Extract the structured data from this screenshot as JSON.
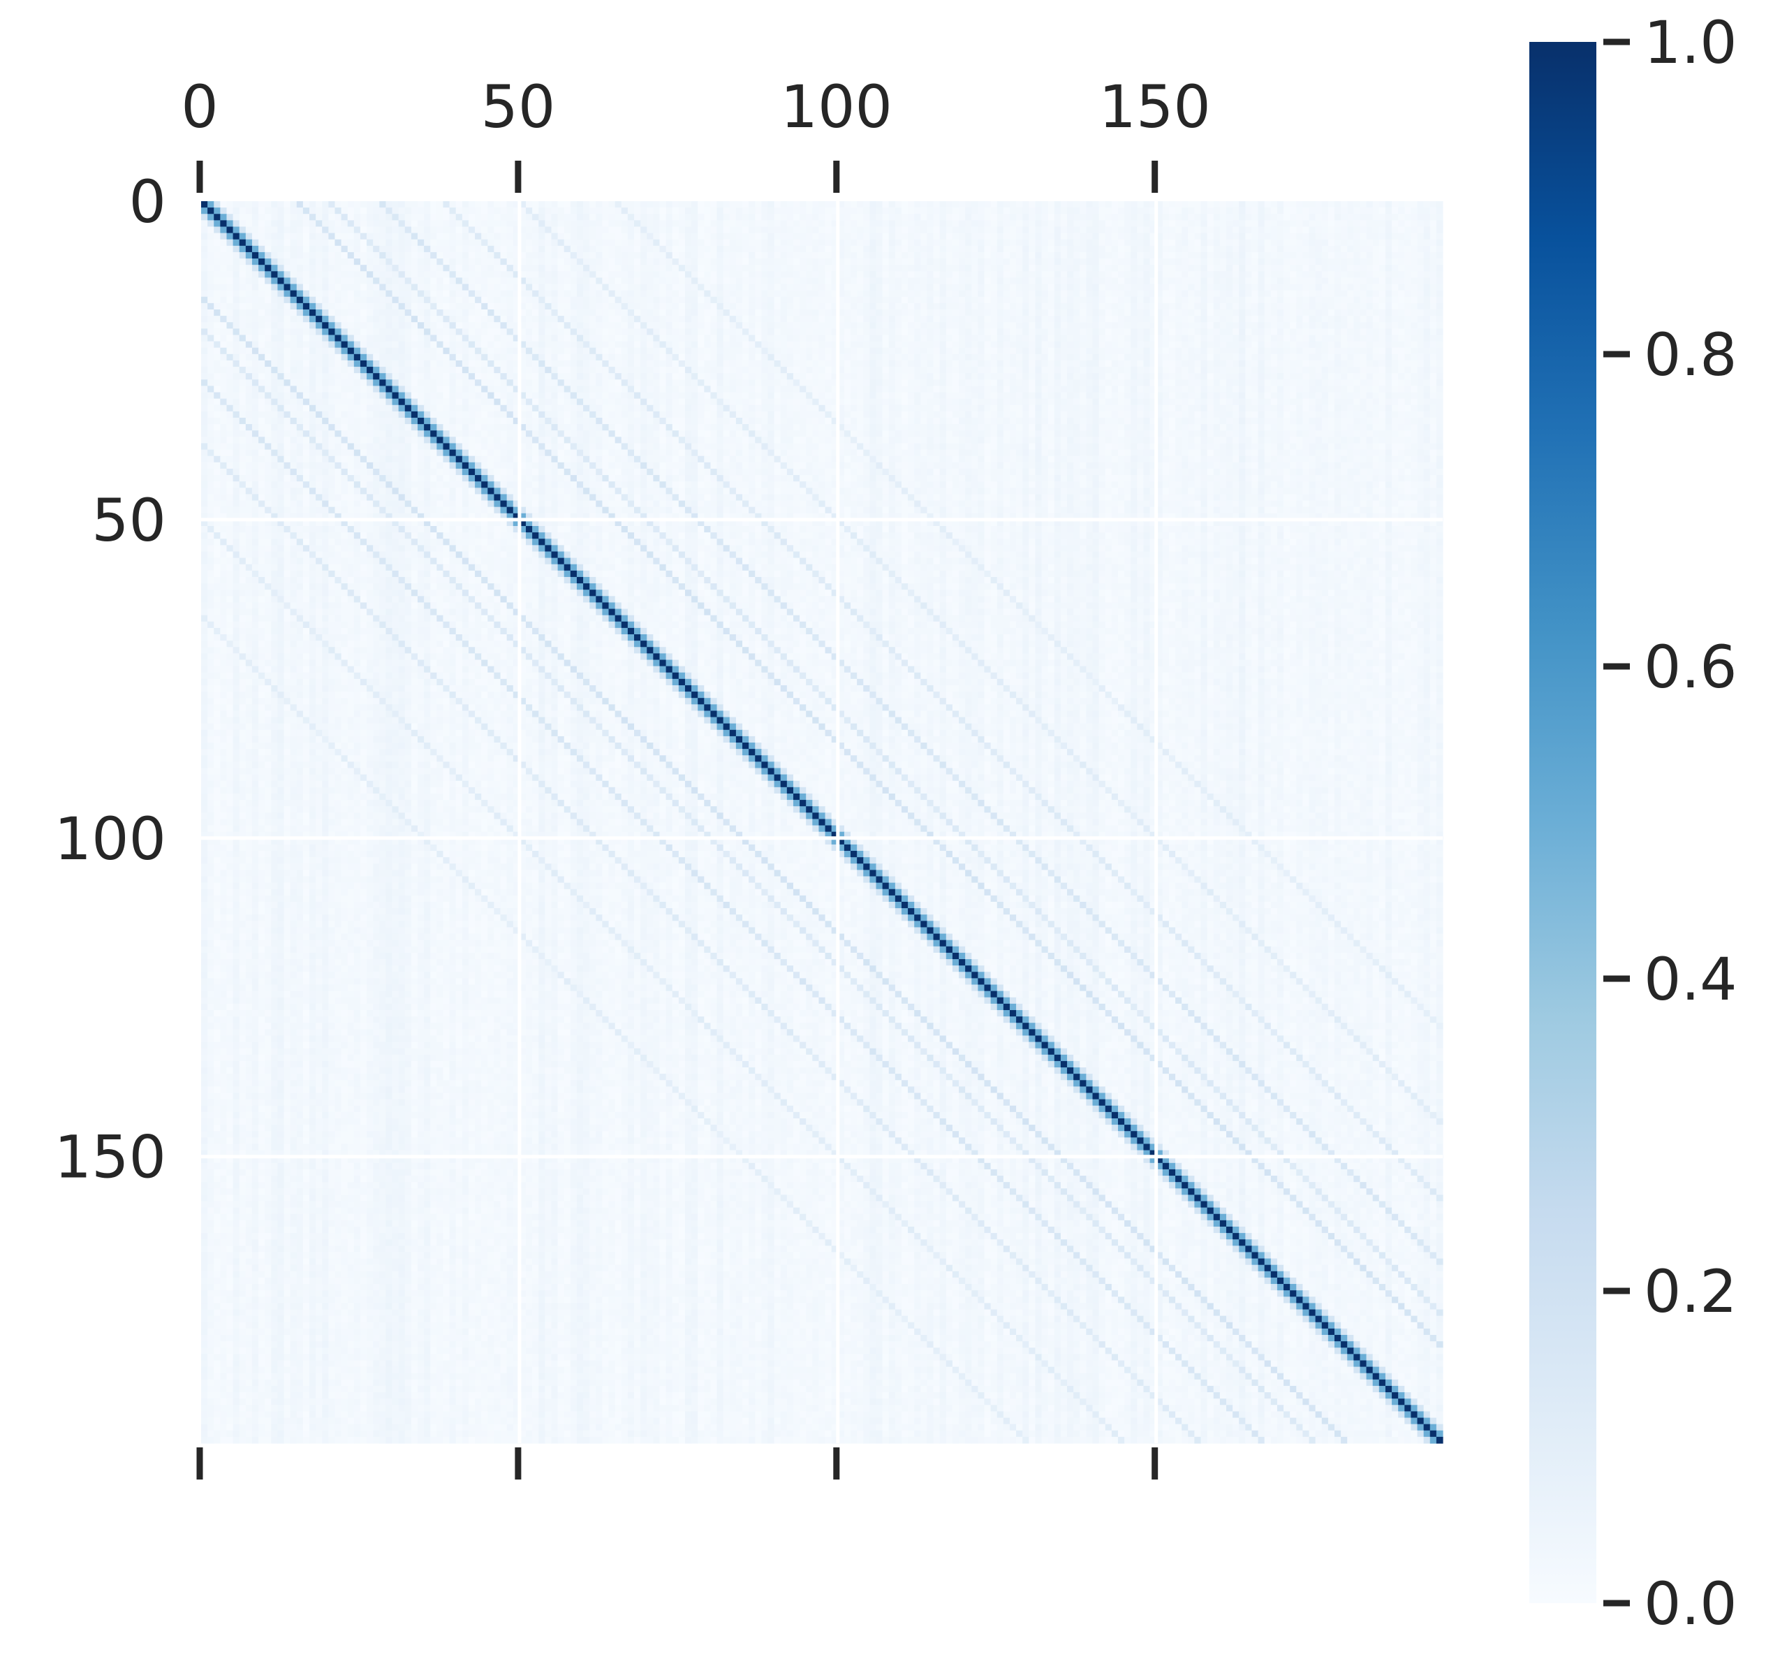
{
  "chart_data": {
    "type": "heatmap",
    "title": "",
    "xlabel": "",
    "ylabel": "",
    "rows": 195,
    "cols": 195,
    "x_ticks": [
      {
        "value": 0,
        "label": "0"
      },
      {
        "value": 50,
        "label": "50"
      },
      {
        "value": 100,
        "label": "100"
      },
      {
        "value": 150,
        "label": "150"
      }
    ],
    "y_ticks": [
      {
        "value": 0,
        "label": "0"
      },
      {
        "value": 50,
        "label": "50"
      },
      {
        "value": 100,
        "label": "100"
      },
      {
        "value": 150,
        "label": "150"
      }
    ],
    "grid": true,
    "x_axis_position": "top",
    "colormap": "Blues",
    "colormap_stops": [
      "#f7fbff",
      "#deebf7",
      "#c6dbef",
      "#9ecae1",
      "#6baed6",
      "#4292c6",
      "#2171b5",
      "#08519c",
      "#08306b"
    ],
    "grid_color": "#ffffff",
    "tick_color": "#262626",
    "colorbar": {
      "range": [
        0.0,
        1.0
      ],
      "ticks": [
        {
          "value": 0.0,
          "label": "0.0"
        },
        {
          "value": 0.2,
          "label": "0.2"
        },
        {
          "value": 0.4,
          "label": "0.4"
        },
        {
          "value": 0.6,
          "label": "0.6"
        },
        {
          "value": 0.8,
          "label": "0.8"
        },
        {
          "value": 1.0,
          "label": "1.0"
        }
      ]
    },
    "pattern": {
      "diagonal_value": 1.0,
      "near_diagonal_value": 0.5,
      "off_diagonal_bands": [
        {
          "offset": 15,
          "value": 0.16
        },
        {
          "offset": 20,
          "value": 0.12
        },
        {
          "offset": 28,
          "value": 0.14
        },
        {
          "offset": 38,
          "value": 0.11
        },
        {
          "offset": 50,
          "value": 0.09
        },
        {
          "offset": 65,
          "value": 0.08
        }
      ],
      "background_range": [
        0.0,
        0.1
      ]
    }
  }
}
